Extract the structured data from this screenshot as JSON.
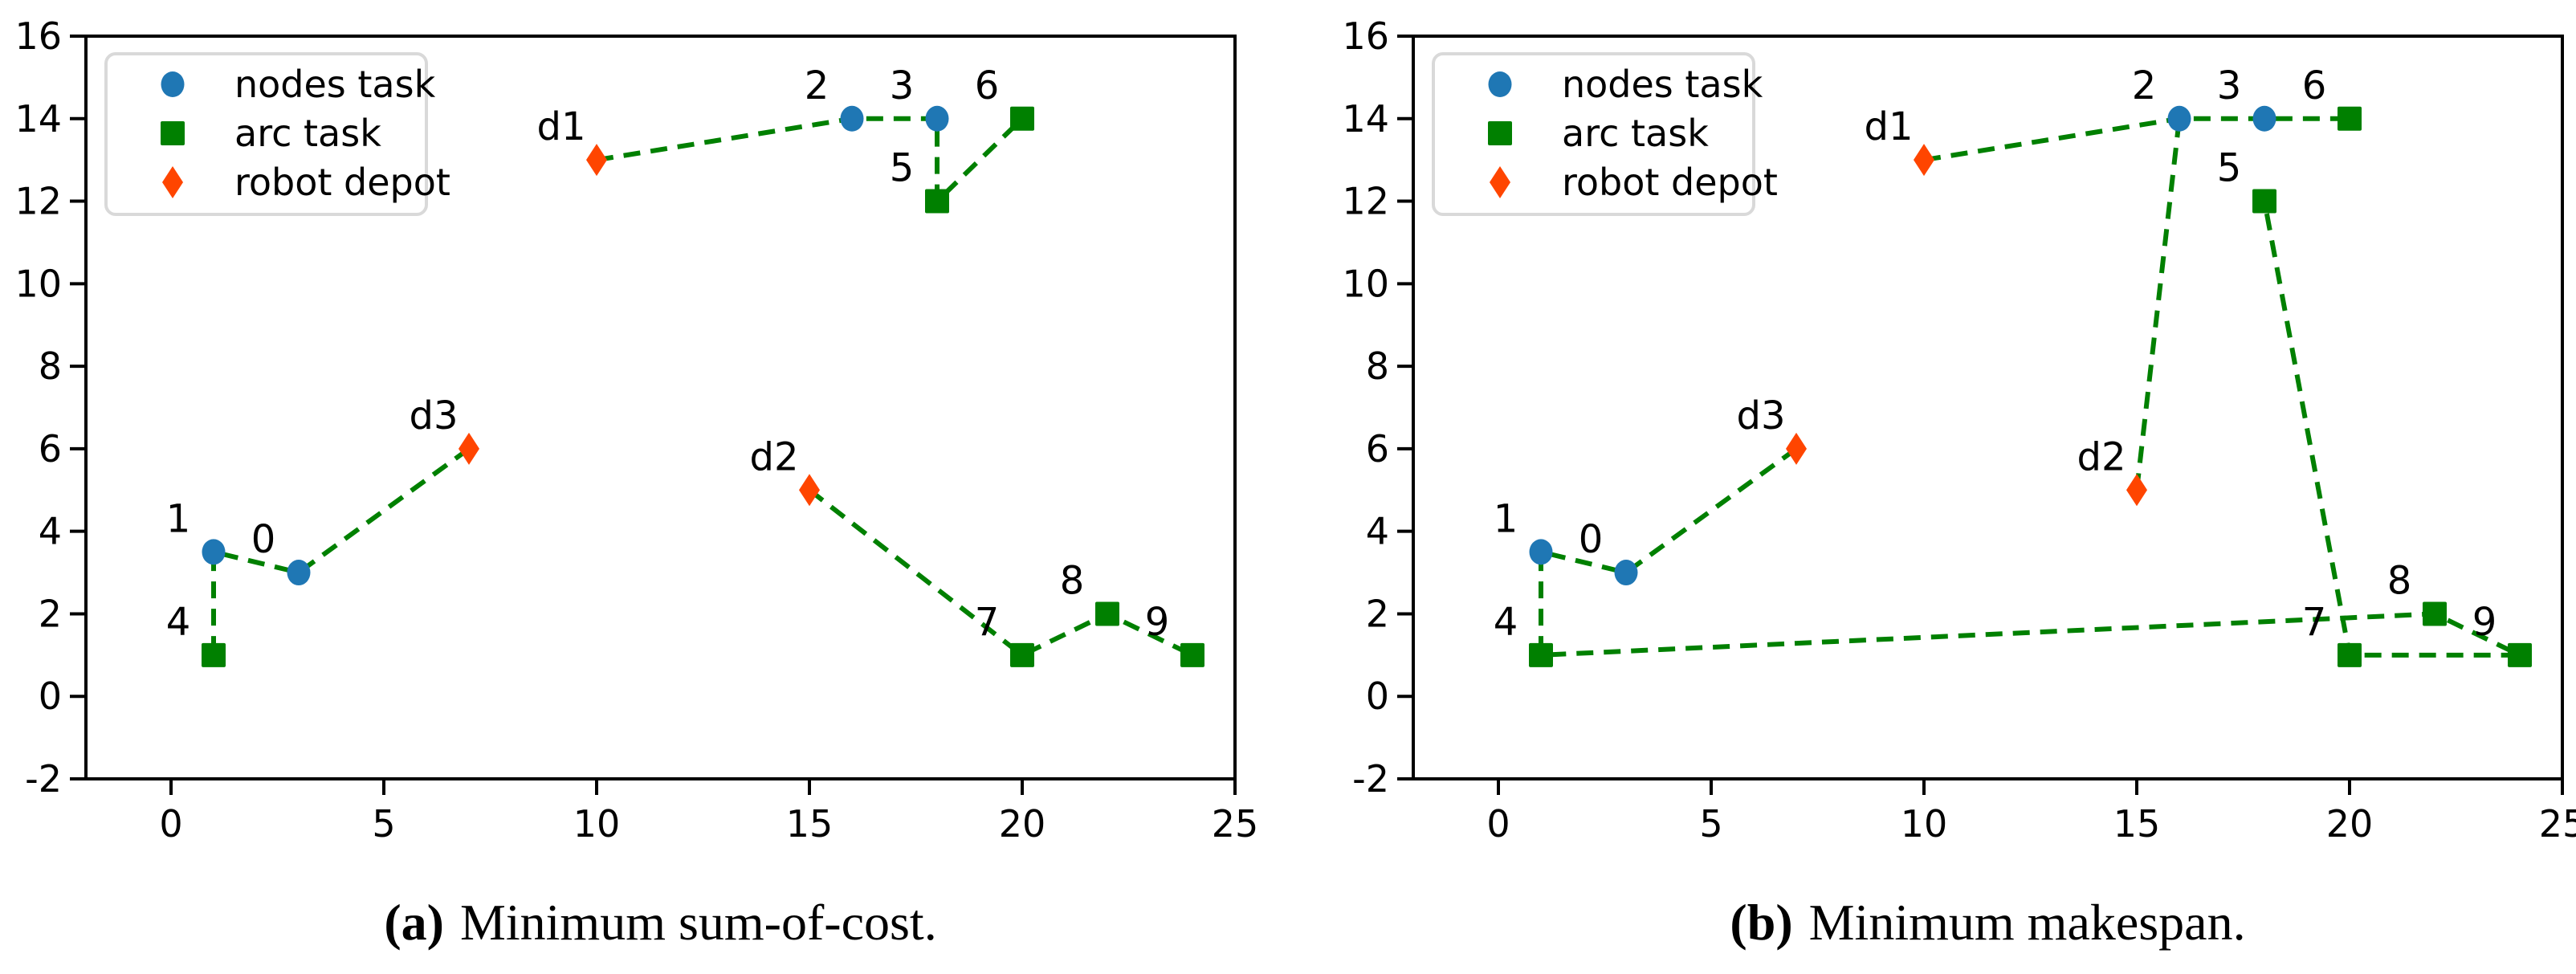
{
  "figure": {
    "background": "#ffffff"
  },
  "colors": {
    "node": "#1f77b4",
    "arc": "#008000",
    "depot": "#ff4500",
    "route": "#008000",
    "axis": "#000000",
    "text": "#000000",
    "legend_border": "#d9d9d9",
    "legend_bg": "#ffffff"
  },
  "legend": {
    "position": "upper left",
    "entries": [
      {
        "label": "nodes task",
        "kind": "node"
      },
      {
        "label": "arc task",
        "kind": "arc"
      },
      {
        "label": "robot depot",
        "kind": "depot"
      }
    ]
  },
  "chart_data": [
    {
      "type": "scatter",
      "caption": {
        "label": "(a)",
        "text": "Minimum sum-of-cost."
      },
      "xlabel": "",
      "ylabel": "",
      "xlim": [
        -2,
        25
      ],
      "ylim": [
        -2,
        16
      ],
      "xticks": [
        0,
        5,
        10,
        15,
        20,
        25
      ],
      "yticks": [
        -2,
        0,
        2,
        4,
        6,
        8,
        10,
        12,
        14,
        16
      ],
      "grid": false,
      "legend_position": "upper left",
      "points": [
        {
          "id": "0",
          "x": 3,
          "y": 3,
          "kind": "node"
        },
        {
          "id": "1",
          "x": 1,
          "y": 3.5,
          "kind": "node"
        },
        {
          "id": "2",
          "x": 16,
          "y": 14,
          "kind": "node"
        },
        {
          "id": "3",
          "x": 18,
          "y": 14,
          "kind": "node"
        },
        {
          "id": "4",
          "x": 1,
          "y": 1,
          "kind": "arc"
        },
        {
          "id": "5",
          "x": 18,
          "y": 12,
          "kind": "arc"
        },
        {
          "id": "6",
          "x": 20,
          "y": 14,
          "kind": "arc"
        },
        {
          "id": "7",
          "x": 20,
          "y": 1,
          "kind": "arc"
        },
        {
          "id": "8",
          "x": 22,
          "y": 2,
          "kind": "arc"
        },
        {
          "id": "9",
          "x": 24,
          "y": 1,
          "kind": "arc"
        },
        {
          "id": "d1",
          "x": 10,
          "y": 13,
          "kind": "depot"
        },
        {
          "id": "d2",
          "x": 15,
          "y": 5,
          "kind": "depot"
        },
        {
          "id": "d3",
          "x": 7,
          "y": 6,
          "kind": "depot"
        }
      ],
      "routes": [
        [
          "d1",
          "2",
          "3",
          "5",
          "6"
        ],
        [
          "d3",
          "0",
          "1",
          "4"
        ],
        [
          "d2",
          "7",
          "8",
          "9"
        ]
      ]
    },
    {
      "type": "scatter",
      "caption": {
        "label": "(b)",
        "text": "Minimum makespan."
      },
      "xlabel": "",
      "ylabel": "",
      "xlim": [
        -2,
        25
      ],
      "ylim": [
        -2,
        16
      ],
      "xticks": [
        0,
        5,
        10,
        15,
        20,
        25
      ],
      "yticks": [
        -2,
        0,
        2,
        4,
        6,
        8,
        10,
        12,
        14,
        16
      ],
      "grid": false,
      "legend_position": "upper left",
      "points": [
        {
          "id": "0",
          "x": 3,
          "y": 3,
          "kind": "node"
        },
        {
          "id": "1",
          "x": 1,
          "y": 3.5,
          "kind": "node"
        },
        {
          "id": "2",
          "x": 16,
          "y": 14,
          "kind": "node"
        },
        {
          "id": "3",
          "x": 18,
          "y": 14,
          "kind": "node"
        },
        {
          "id": "4",
          "x": 1,
          "y": 1,
          "kind": "arc"
        },
        {
          "id": "5",
          "x": 18,
          "y": 12,
          "kind": "arc"
        },
        {
          "id": "6",
          "x": 20,
          "y": 14,
          "kind": "arc"
        },
        {
          "id": "7",
          "x": 20,
          "y": 1,
          "kind": "arc"
        },
        {
          "id": "8",
          "x": 22,
          "y": 2,
          "kind": "arc"
        },
        {
          "id": "9",
          "x": 24,
          "y": 1,
          "kind": "arc"
        },
        {
          "id": "d1",
          "x": 10,
          "y": 13,
          "kind": "depot"
        },
        {
          "id": "d2",
          "x": 15,
          "y": 5,
          "kind": "depot"
        },
        {
          "id": "d3",
          "x": 7,
          "y": 6,
          "kind": "depot"
        }
      ],
      "routes": [
        [
          "d1",
          "2",
          "3",
          "6"
        ],
        [
          "d2",
          "2"
        ],
        [
          "d3",
          "0",
          "1",
          "4",
          "8",
          "9",
          "7",
          "5"
        ]
      ]
    }
  ]
}
